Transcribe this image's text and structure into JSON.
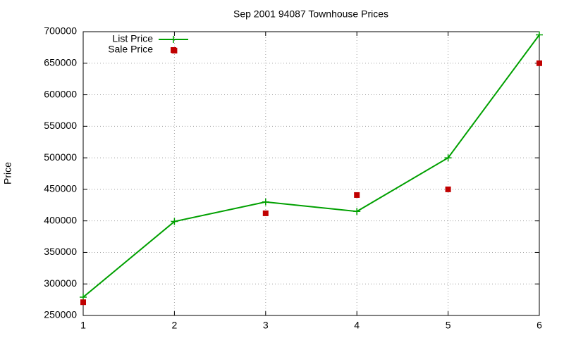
{
  "chart_data": {
    "type": "line",
    "title": "Sep 2001 94087 Townhouse Prices",
    "ylabel": "Price",
    "x": [
      1,
      2,
      3,
      4,
      5,
      6
    ],
    "series": [
      {
        "name": "List Price",
        "color": "#00a000",
        "style": "linespoints",
        "values": [
          279000,
          399000,
          430000,
          415000,
          500000,
          695000
        ]
      },
      {
        "name": "Sale Price",
        "color": "#c00000",
        "style": "points",
        "values": [
          271000,
          670000,
          412000,
          441000,
          450000,
          650000
        ]
      }
    ],
    "xlim": [
      1,
      6
    ],
    "xticks": [
      1,
      2,
      3,
      4,
      5,
      6
    ],
    "ylim": [
      250000,
      700000
    ],
    "yticks": [
      250000,
      300000,
      350000,
      400000,
      450000,
      500000,
      550000,
      600000,
      650000,
      700000
    ],
    "grid": true,
    "legend": "top-left"
  }
}
